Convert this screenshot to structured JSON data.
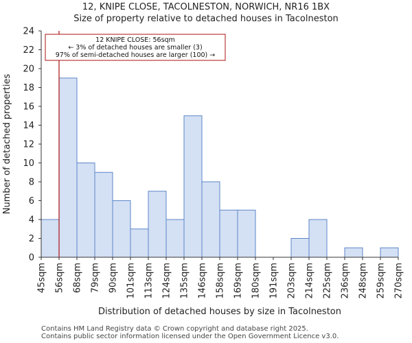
{
  "title": "12, KNIPE CLOSE, TACOLNESTON, NORWICH, NR16 1BX",
  "subtitle": "Size of property relative to detached houses in Tacolneston",
  "footer": {
    "line1": "Contains HM Land Registry data © Crown copyright and database right 2025.",
    "line2": "Contains public sector information licensed under the Open Government Licence v3.0."
  },
  "chart_data": {
    "type": "bar",
    "title": "12, KNIPE CLOSE, TACOLNESTON, NORWICH, NR16 1BX",
    "subtitle": "Size of property relative to detached houses in Tacolneston",
    "xlabel": "Distribution of detached houses by size in Tacolneston",
    "ylabel": "Number of detached properties",
    "x_tick_labels": [
      "45sqm",
      "56sqm",
      "68sqm",
      "79sqm",
      "90sqm",
      "101sqm",
      "113sqm",
      "124sqm",
      "135sqm",
      "146sqm",
      "158sqm",
      "169sqm",
      "180sqm",
      "191sqm",
      "203sqm",
      "214sqm",
      "225sqm",
      "236sqm",
      "248sqm",
      "259sqm",
      "270sqm"
    ],
    "values": [
      4,
      19,
      10,
      9,
      6,
      3,
      7,
      4,
      15,
      8,
      5,
      5,
      0,
      0,
      2,
      4,
      0,
      1,
      0,
      1
    ],
    "ylim": [
      0,
      24
    ],
    "yticks": [
      0,
      2,
      4,
      6,
      8,
      10,
      12,
      14,
      16,
      18,
      20,
      22,
      24
    ],
    "grid": false,
    "bar_color": "#d4e0f4",
    "bar_edge_color": "#5b86c7",
    "marker": {
      "value_sqm": 56,
      "color": "#a81111"
    },
    "annotation": {
      "lines": [
        "12 KNIPE CLOSE: 56sqm",
        "← 3% of detached houses are smaller (3)",
        "97% of semi-detached houses are larger (100) →"
      ],
      "border_color": "#a81111"
    }
  }
}
